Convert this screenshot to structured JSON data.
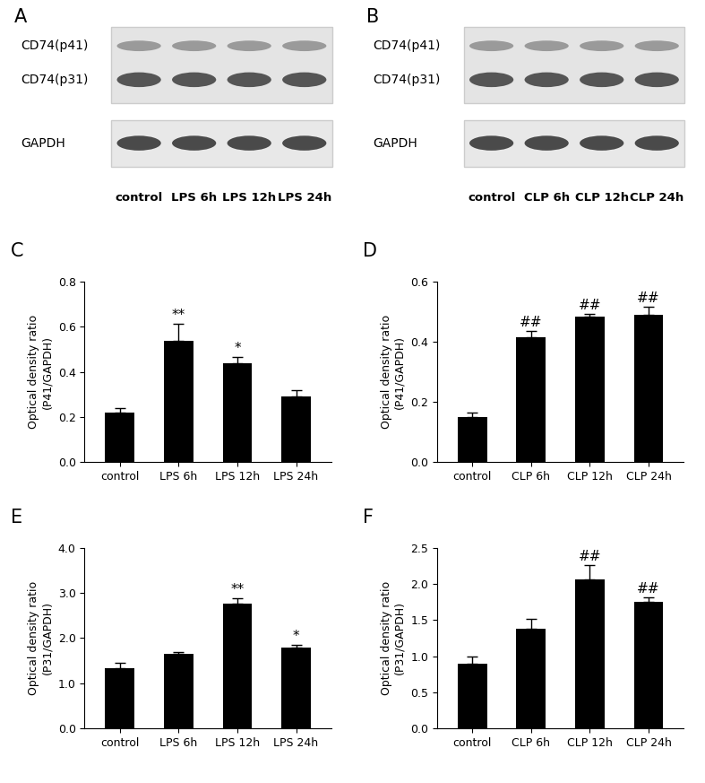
{
  "blots": [
    {
      "panel": "A",
      "bands": [
        "CD74(p41)",
        "CD74(p31)",
        "GAPDH"
      ],
      "lanes": [
        "control",
        "LPS 6h",
        "LPS 12h",
        "LPS 24h"
      ]
    },
    {
      "panel": "B",
      "bands": [
        "CD74(p41)",
        "CD74(p31)",
        "GAPDH"
      ],
      "lanes": [
        "control",
        "CLP 6h",
        "CLP 12h",
        "CLP 24h"
      ]
    }
  ],
  "chart_data": [
    {
      "type": "bar",
      "title": "C",
      "y_label": "Optical density ratio\n(P41/GAPDH)",
      "categories": [
        "control",
        "LPS 6h",
        "LPS 12h",
        "LPS 24h"
      ],
      "values": [
        0.22,
        0.54,
        0.44,
        0.29
      ],
      "errors": [
        0.02,
        0.075,
        0.025,
        0.03
      ],
      "annotations": [
        null,
        "**",
        "*",
        null
      ],
      "color": "#000000",
      "ylim": [
        0.0,
        0.8
      ],
      "yticks": [
        0.0,
        0.2,
        0.4,
        0.6,
        0.8
      ]
    },
    {
      "type": "bar",
      "title": "D",
      "y_label": "Optical density ratio\n(P41/GAPDH)",
      "categories": [
        "control",
        "CLP 6h",
        "CLP 12h",
        "CLP 24h"
      ],
      "values": [
        0.15,
        0.415,
        0.485,
        0.49
      ],
      "errors": [
        0.015,
        0.02,
        0.008,
        0.028
      ],
      "annotations": [
        null,
        "##",
        "##",
        "##"
      ],
      "color": "#000000",
      "ylim": [
        0.0,
        0.6
      ],
      "yticks": [
        0.0,
        0.2,
        0.4,
        0.6
      ]
    },
    {
      "type": "bar",
      "title": "E",
      "y_label": "Optical density ratio\n(P31/GAPDH)",
      "categories": [
        "control",
        "LPS 6h",
        "LPS 12h",
        "LPS 24h"
      ],
      "values": [
        1.33,
        1.65,
        2.76,
        1.79
      ],
      "errors": [
        0.12,
        0.05,
        0.12,
        0.06
      ],
      "annotations": [
        null,
        null,
        "**",
        "*"
      ],
      "color": "#000000",
      "ylim": [
        0.0,
        4.0
      ],
      "yticks": [
        0.0,
        1.0,
        2.0,
        3.0,
        4.0
      ]
    },
    {
      "type": "bar",
      "title": "F",
      "y_label": "Optical density ratio\n(P31/GAPDH)",
      "categories": [
        "control",
        "CLP 6h",
        "CLP 12h",
        "CLP 24h"
      ],
      "values": [
        0.89,
        1.38,
        2.06,
        1.76
      ],
      "errors": [
        0.1,
        0.14,
        0.2,
        0.06
      ],
      "annotations": [
        null,
        null,
        "##",
        "##"
      ],
      "color": "#000000",
      "ylim": [
        0.0,
        2.5
      ],
      "yticks": [
        0.0,
        0.5,
        1.0,
        1.5,
        2.0,
        2.5
      ]
    }
  ]
}
